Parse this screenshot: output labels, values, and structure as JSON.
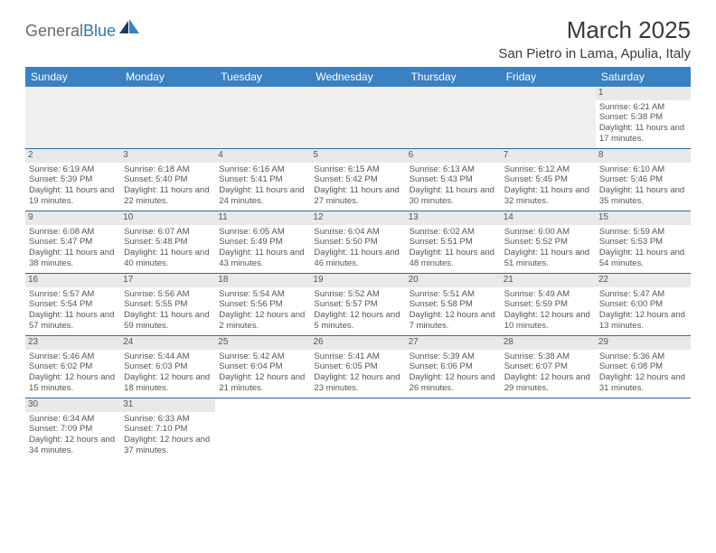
{
  "brand": {
    "part1": "General",
    "part2": "Blue"
  },
  "title": "March 2025",
  "location": "San Pietro in Lama, Apulia, Italy",
  "colors": {
    "header_bg": "#3a81c4",
    "header_text": "#ffffff",
    "cell_border": "#2a6aa8",
    "daynum_bg": "#e9e9e9",
    "blank_bg": "#efefef",
    "body_text": "#555555",
    "brand_gray": "#6b6b6b",
    "brand_blue": "#2a7ab8"
  },
  "weekdays": [
    "Sunday",
    "Monday",
    "Tuesday",
    "Wednesday",
    "Thursday",
    "Friday",
    "Saturday"
  ],
  "weeks": [
    [
      null,
      null,
      null,
      null,
      null,
      null,
      {
        "d": "1",
        "sr": "Sunrise: 6:21 AM",
        "ss": "Sunset: 5:38 PM",
        "dl": "Daylight: 11 hours and 17 minutes."
      }
    ],
    [
      {
        "d": "2",
        "sr": "Sunrise: 6:19 AM",
        "ss": "Sunset: 5:39 PM",
        "dl": "Daylight: 11 hours and 19 minutes."
      },
      {
        "d": "3",
        "sr": "Sunrise: 6:18 AM",
        "ss": "Sunset: 5:40 PM",
        "dl": "Daylight: 11 hours and 22 minutes."
      },
      {
        "d": "4",
        "sr": "Sunrise: 6:16 AM",
        "ss": "Sunset: 5:41 PM",
        "dl": "Daylight: 11 hours and 24 minutes."
      },
      {
        "d": "5",
        "sr": "Sunrise: 6:15 AM",
        "ss": "Sunset: 5:42 PM",
        "dl": "Daylight: 11 hours and 27 minutes."
      },
      {
        "d": "6",
        "sr": "Sunrise: 6:13 AM",
        "ss": "Sunset: 5:43 PM",
        "dl": "Daylight: 11 hours and 30 minutes."
      },
      {
        "d": "7",
        "sr": "Sunrise: 6:12 AM",
        "ss": "Sunset: 5:45 PM",
        "dl": "Daylight: 11 hours and 32 minutes."
      },
      {
        "d": "8",
        "sr": "Sunrise: 6:10 AM",
        "ss": "Sunset: 5:46 PM",
        "dl": "Daylight: 11 hours and 35 minutes."
      }
    ],
    [
      {
        "d": "9",
        "sr": "Sunrise: 6:08 AM",
        "ss": "Sunset: 5:47 PM",
        "dl": "Daylight: 11 hours and 38 minutes."
      },
      {
        "d": "10",
        "sr": "Sunrise: 6:07 AM",
        "ss": "Sunset: 5:48 PM",
        "dl": "Daylight: 11 hours and 40 minutes."
      },
      {
        "d": "11",
        "sr": "Sunrise: 6:05 AM",
        "ss": "Sunset: 5:49 PM",
        "dl": "Daylight: 11 hours and 43 minutes."
      },
      {
        "d": "12",
        "sr": "Sunrise: 6:04 AM",
        "ss": "Sunset: 5:50 PM",
        "dl": "Daylight: 11 hours and 46 minutes."
      },
      {
        "d": "13",
        "sr": "Sunrise: 6:02 AM",
        "ss": "Sunset: 5:51 PM",
        "dl": "Daylight: 11 hours and 48 minutes."
      },
      {
        "d": "14",
        "sr": "Sunrise: 6:00 AM",
        "ss": "Sunset: 5:52 PM",
        "dl": "Daylight: 11 hours and 51 minutes."
      },
      {
        "d": "15",
        "sr": "Sunrise: 5:59 AM",
        "ss": "Sunset: 5:53 PM",
        "dl": "Daylight: 11 hours and 54 minutes."
      }
    ],
    [
      {
        "d": "16",
        "sr": "Sunrise: 5:57 AM",
        "ss": "Sunset: 5:54 PM",
        "dl": "Daylight: 11 hours and 57 minutes."
      },
      {
        "d": "17",
        "sr": "Sunrise: 5:56 AM",
        "ss": "Sunset: 5:55 PM",
        "dl": "Daylight: 11 hours and 59 minutes."
      },
      {
        "d": "18",
        "sr": "Sunrise: 5:54 AM",
        "ss": "Sunset: 5:56 PM",
        "dl": "Daylight: 12 hours and 2 minutes."
      },
      {
        "d": "19",
        "sr": "Sunrise: 5:52 AM",
        "ss": "Sunset: 5:57 PM",
        "dl": "Daylight: 12 hours and 5 minutes."
      },
      {
        "d": "20",
        "sr": "Sunrise: 5:51 AM",
        "ss": "Sunset: 5:58 PM",
        "dl": "Daylight: 12 hours and 7 minutes."
      },
      {
        "d": "21",
        "sr": "Sunrise: 5:49 AM",
        "ss": "Sunset: 5:59 PM",
        "dl": "Daylight: 12 hours and 10 minutes."
      },
      {
        "d": "22",
        "sr": "Sunrise: 5:47 AM",
        "ss": "Sunset: 6:00 PM",
        "dl": "Daylight: 12 hours and 13 minutes."
      }
    ],
    [
      {
        "d": "23",
        "sr": "Sunrise: 5:46 AM",
        "ss": "Sunset: 6:02 PM",
        "dl": "Daylight: 12 hours and 15 minutes."
      },
      {
        "d": "24",
        "sr": "Sunrise: 5:44 AM",
        "ss": "Sunset: 6:03 PM",
        "dl": "Daylight: 12 hours and 18 minutes."
      },
      {
        "d": "25",
        "sr": "Sunrise: 5:42 AM",
        "ss": "Sunset: 6:04 PM",
        "dl": "Daylight: 12 hours and 21 minutes."
      },
      {
        "d": "26",
        "sr": "Sunrise: 5:41 AM",
        "ss": "Sunset: 6:05 PM",
        "dl": "Daylight: 12 hours and 23 minutes."
      },
      {
        "d": "27",
        "sr": "Sunrise: 5:39 AM",
        "ss": "Sunset: 6:06 PM",
        "dl": "Daylight: 12 hours and 26 minutes."
      },
      {
        "d": "28",
        "sr": "Sunrise: 5:38 AM",
        "ss": "Sunset: 6:07 PM",
        "dl": "Daylight: 12 hours and 29 minutes."
      },
      {
        "d": "29",
        "sr": "Sunrise: 5:36 AM",
        "ss": "Sunset: 6:08 PM",
        "dl": "Daylight: 12 hours and 31 minutes."
      }
    ],
    [
      {
        "d": "30",
        "sr": "Sunrise: 6:34 AM",
        "ss": "Sunset: 7:09 PM",
        "dl": "Daylight: 12 hours and 34 minutes."
      },
      {
        "d": "31",
        "sr": "Sunrise: 6:33 AM",
        "ss": "Sunset: 7:10 PM",
        "dl": "Daylight: 12 hours and 37 minutes."
      },
      null,
      null,
      null,
      null,
      null
    ]
  ]
}
